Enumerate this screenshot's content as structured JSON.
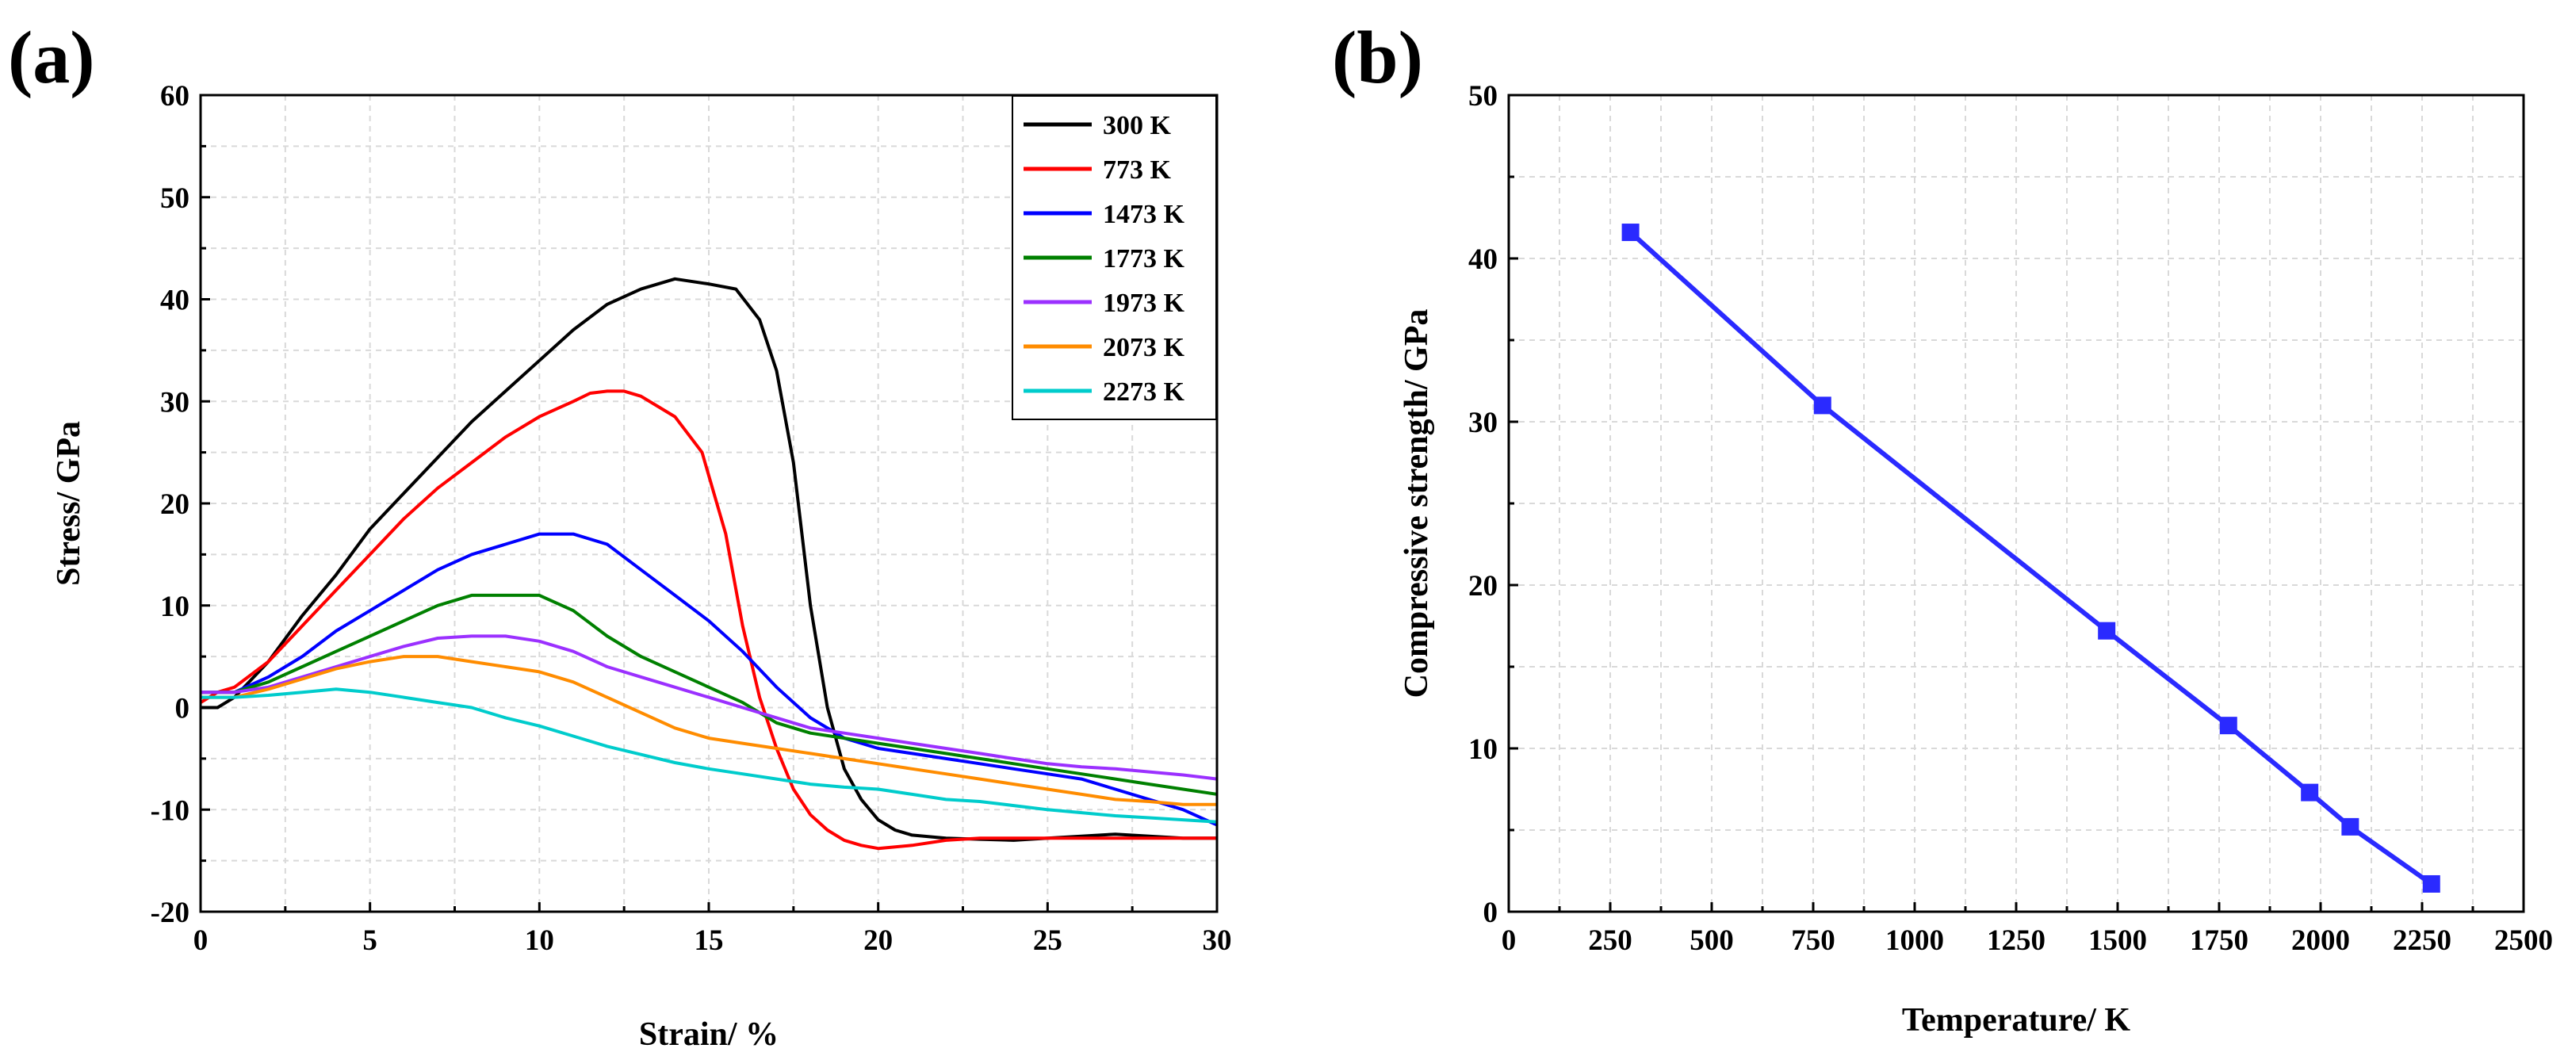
{
  "panels": {
    "a": {
      "label": "(a)"
    },
    "b": {
      "label": "(b)"
    }
  },
  "chart_data": [
    {
      "type": "line",
      "title": "",
      "xlabel": "Strain/ %",
      "ylabel": "Stress/ GPa",
      "xlim": [
        0,
        30
      ],
      "ylim": [
        -20,
        60
      ],
      "xticks": [
        0,
        5,
        10,
        15,
        20,
        25,
        30
      ],
      "yticks": [
        -20,
        -10,
        0,
        10,
        20,
        30,
        40,
        50,
        60
      ],
      "grid": true,
      "legend_position": "top-right",
      "series": [
        {
          "name": "300 K",
          "color": "#000000",
          "x": [
            0,
            0.5,
            1,
            2,
            3,
            4,
            5,
            6,
            7,
            8,
            9,
            10,
            11,
            12,
            13,
            14,
            15,
            15.8,
            16.5,
            17,
            17.5,
            18,
            18.5,
            19,
            19.5,
            20,
            20.5,
            21,
            22,
            23,
            24,
            25,
            26,
            27,
            28,
            29,
            30
          ],
          "y": [
            0,
            0,
            1,
            4.5,
            9,
            13,
            17.5,
            21,
            24.5,
            28,
            31,
            34,
            37,
            39.5,
            41,
            42,
            41.5,
            41,
            38,
            33,
            24,
            10,
            0,
            -6,
            -9,
            -11,
            -12,
            -12.5,
            -12.8,
            -12.9,
            -13,
            -12.8,
            -12.6,
            -12.4,
            -12.6,
            -12.8,
            -12.8
          ]
        },
        {
          "name": "773 K",
          "color": "#ff0000",
          "x": [
            0,
            0.5,
            1,
            2,
            3,
            4,
            5,
            6,
            7,
            8,
            9,
            10,
            11,
            11.5,
            12,
            12.5,
            13,
            14,
            14.8,
            15.5,
            16,
            16.5,
            17,
            17.5,
            18,
            18.5,
            19,
            19.5,
            20,
            21,
            22,
            23,
            25,
            27,
            30
          ],
          "y": [
            0.5,
            1.5,
            2,
            4.5,
            8,
            11.5,
            15,
            18.5,
            21.5,
            24,
            26.5,
            28.5,
            30,
            30.8,
            31,
            31,
            30.5,
            28.5,
            25,
            17,
            8,
            1,
            -4,
            -8,
            -10.5,
            -12,
            -13,
            -13.5,
            -13.8,
            -13.5,
            -13,
            -12.8,
            -12.8,
            -12.8,
            -12.8
          ]
        },
        {
          "name": "1473 K",
          "color": "#0000ff",
          "x": [
            0,
            1,
            2,
            3,
            4,
            5,
            6,
            7,
            8,
            9,
            10,
            11,
            12,
            13,
            14,
            15,
            16,
            17,
            18,
            19,
            20,
            21,
            22,
            23,
            24,
            25,
            26,
            27,
            28,
            29,
            30
          ],
          "y": [
            1.5,
            1.5,
            3,
            5,
            7.5,
            9.5,
            11.5,
            13.5,
            15,
            16,
            17,
            17,
            16,
            13.5,
            11,
            8.5,
            5.5,
            2,
            -1,
            -3,
            -4,
            -4.5,
            -5,
            -5.5,
            -6,
            -6.5,
            -7,
            -8,
            -9,
            -10,
            -11.5
          ]
        },
        {
          "name": "1773 K",
          "color": "#008000",
          "x": [
            0,
            1,
            2,
            3,
            4,
            5,
            6,
            7,
            8,
            9,
            10,
            11,
            12,
            13,
            14,
            15,
            16,
            17,
            18,
            19,
            20,
            21,
            22,
            23,
            24,
            25,
            26,
            27,
            28,
            29,
            30
          ],
          "y": [
            1.5,
            1.5,
            2.5,
            4,
            5.5,
            7,
            8.5,
            10,
            11,
            11,
            11,
            9.5,
            7,
            5,
            3.5,
            2,
            0.5,
            -1.5,
            -2.5,
            -3,
            -3.5,
            -4,
            -4.5,
            -5,
            -5.5,
            -6,
            -6.5,
            -7,
            -7.5,
            -8,
            -8.5
          ]
        },
        {
          "name": "1973 K",
          "color": "#9b30ff",
          "x": [
            0,
            1,
            2,
            3,
            4,
            5,
            6,
            7,
            8,
            9,
            10,
            11,
            12,
            13,
            14,
            15,
            16,
            17,
            18,
            19,
            20,
            21,
            22,
            23,
            24,
            25,
            26,
            27,
            28,
            29,
            30
          ],
          "y": [
            1.5,
            1.5,
            2,
            3,
            4,
            5,
            6,
            6.8,
            7,
            7,
            6.5,
            5.5,
            4,
            3,
            2,
            1,
            0,
            -1,
            -2,
            -2.5,
            -3,
            -3.5,
            -4,
            -4.5,
            -5,
            -5.5,
            -5.8,
            -6,
            -6.3,
            -6.6,
            -7
          ]
        },
        {
          "name": "2073 K",
          "color": "#ff8c00",
          "x": [
            0,
            1,
            2,
            3,
            4,
            5,
            6,
            7,
            8,
            9,
            10,
            11,
            12,
            13,
            14,
            15,
            16,
            17,
            18,
            19,
            20,
            21,
            22,
            23,
            24,
            25,
            26,
            27,
            28,
            29,
            30
          ],
          "y": [
            1,
            1,
            1.8,
            2.8,
            3.8,
            4.5,
            5,
            5,
            4.5,
            4,
            3.5,
            2.5,
            1,
            -0.5,
            -2,
            -3,
            -3.5,
            -4,
            -4.5,
            -5,
            -5.5,
            -6,
            -6.5,
            -7,
            -7.5,
            -8,
            -8.5,
            -9,
            -9.2,
            -9.5,
            -9.5
          ]
        },
        {
          "name": "2273 K",
          "color": "#00cccc",
          "x": [
            0,
            1,
            2,
            3,
            4,
            5,
            6,
            7,
            8,
            9,
            10,
            11,
            12,
            13,
            14,
            15,
            16,
            17,
            18,
            19,
            20,
            21,
            22,
            23,
            24,
            25,
            26,
            27,
            28,
            29,
            30
          ],
          "y": [
            1,
            1,
            1.2,
            1.5,
            1.8,
            1.5,
            1,
            0.5,
            0,
            -1,
            -1.8,
            -2.8,
            -3.8,
            -4.6,
            -5.4,
            -6,
            -6.5,
            -7,
            -7.5,
            -7.8,
            -8,
            -8.5,
            -9,
            -9.2,
            -9.6,
            -10,
            -10.3,
            -10.6,
            -10.8,
            -11,
            -11.2
          ]
        }
      ]
    },
    {
      "type": "line",
      "title": "",
      "xlabel": "Temperature/ K",
      "ylabel": "Compressive strength/ GPa",
      "xlim": [
        0,
        2500
      ],
      "ylim": [
        0,
        50
      ],
      "xticks": [
        0,
        250,
        500,
        750,
        1000,
        1250,
        1500,
        1750,
        2000,
        2250,
        2500
      ],
      "yticks": [
        0,
        10,
        20,
        30,
        40,
        50
      ],
      "grid": true,
      "series": [
        {
          "name": "Compressive strength",
          "color": "#2a2aff",
          "marker": "square",
          "x": [
            300,
            773,
            1473,
            1773,
            1973,
            2073,
            2273
          ],
          "y": [
            41.6,
            31.0,
            17.2,
            11.4,
            7.3,
            5.2,
            1.7
          ]
        }
      ]
    }
  ]
}
